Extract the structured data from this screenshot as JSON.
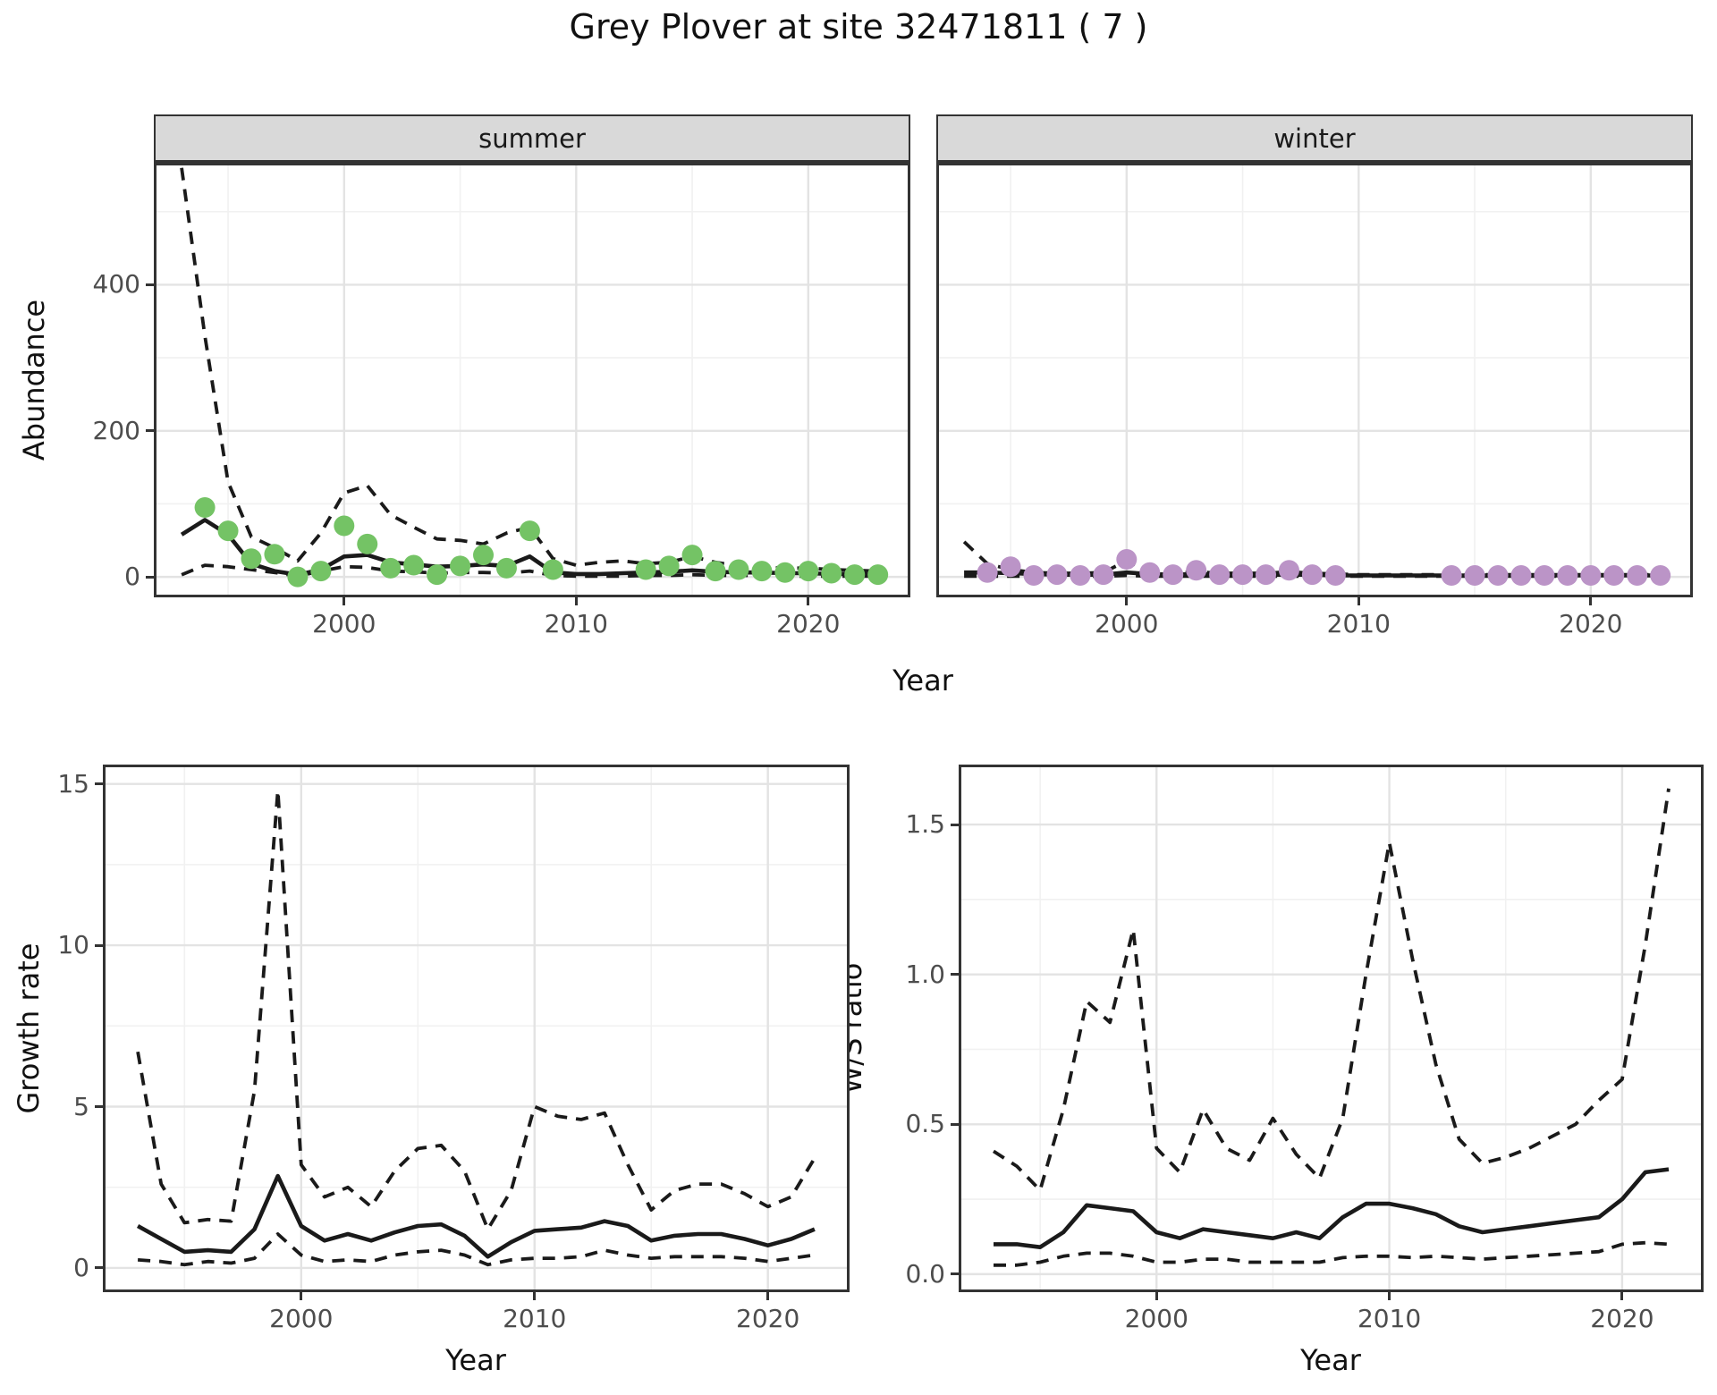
{
  "title": "Grey Plover at site 32471811 ( 7 )",
  "labels": {
    "abundance": "Abundance",
    "year": "Year",
    "growth_rate": "Growth rate",
    "ws_ratio": "W/S ratio"
  },
  "colors": {
    "summer_point": "#74C365",
    "winter_point": "#BB94C7",
    "line": "#1A1A1A",
    "strip_bg": "#D9D9D9",
    "panel_border": "#333333",
    "grid_major": "#E3E3E3",
    "grid_minor": "#F1F1F1",
    "tick_text": "#4D4D4D"
  },
  "chart_data": [
    {
      "name": "abundance-summer",
      "type": "line+scatter",
      "facet_label": "summer",
      "xlabel": "Year",
      "ylabel": "Abundance",
      "legend": "none",
      "grid": true,
      "point_color": "#74C365",
      "xlim": [
        1991.8,
        2024.4
      ],
      "ylim": [
        -28,
        567
      ],
      "xticks": [
        2000,
        2010,
        2020
      ],
      "xtick_labels": [
        "2000",
        "2010",
        "2020"
      ],
      "x_minor": [
        1995,
        2005,
        2015
      ],
      "yticks": [
        0,
        200,
        400
      ],
      "ytick_labels": [
        "0",
        "200",
        "400"
      ],
      "y_minor": [
        100,
        300,
        500
      ],
      "years": [
        1993,
        1994,
        1995,
        1996,
        1997,
        1998,
        1999,
        2000,
        2001,
        2002,
        2003,
        2004,
        2005,
        2006,
        2007,
        2008,
        2009,
        2010,
        2011,
        2012,
        2013,
        2014,
        2015,
        2016,
        2017,
        2018,
        2019,
        2020,
        2021,
        2022,
        2023
      ],
      "series": [
        {
          "name": "upper-95ci",
          "style": "dashed",
          "y": [
            560,
            330,
            130,
            55,
            40,
            22,
            60,
            115,
            125,
            85,
            68,
            52,
            50,
            45,
            60,
            68,
            25,
            16,
            20,
            22,
            18,
            20,
            28,
            20,
            15,
            13,
            12,
            12,
            10,
            9,
            8
          ]
        },
        {
          "name": "lower-95ci",
          "style": "dashed",
          "y": [
            3,
            16,
            14,
            10,
            6,
            1,
            8,
            14,
            13,
            8,
            7,
            5,
            6,
            6,
            5,
            8,
            2,
            1,
            1,
            1,
            2,
            2,
            3,
            2,
            2,
            2,
            1,
            1,
            1,
            1,
            1
          ]
        },
        {
          "name": "fitted",
          "style": "solid",
          "y": [
            58,
            78,
            58,
            18,
            8,
            3,
            10,
            28,
            30,
            20,
            17,
            14,
            15,
            17,
            15,
            28,
            6,
            4,
            4,
            5,
            6,
            7,
            9,
            7,
            6,
            6,
            5,
            5,
            4,
            4,
            3
          ]
        },
        {
          "name": "observed",
          "style": "points",
          "x": [
            1994,
            1995,
            1996,
            1997,
            1998,
            1999,
            2000,
            2001,
            2002,
            2003,
            2004,
            2005,
            2006,
            2007,
            2008,
            2009,
            2013,
            2014,
            2015,
            2016,
            2017,
            2018,
            2019,
            2020,
            2021,
            2022,
            2023
          ],
          "y": [
            95,
            63,
            25,
            31,
            0,
            8,
            70,
            45,
            12,
            16,
            3,
            15,
            30,
            12,
            63,
            10,
            10,
            15,
            30,
            8,
            10,
            8,
            6,
            8,
            5,
            3,
            3
          ]
        }
      ]
    },
    {
      "name": "abundance-winter",
      "type": "line+scatter",
      "facet_label": "winter",
      "xlabel": "Year",
      "ylabel": "Abundance",
      "legend": "none",
      "grid": true,
      "point_color": "#BB94C7",
      "xlim": [
        1991.8,
        2024.4
      ],
      "ylim": [
        -28,
        567
      ],
      "xticks": [
        2000,
        2010,
        2020
      ],
      "xtick_labels": [
        "2000",
        "2010",
        "2020"
      ],
      "x_minor": [
        1995,
        2005,
        2015
      ],
      "yticks": [
        0,
        200,
        400
      ],
      "ytick_labels": [
        "0",
        "200",
        "400"
      ],
      "y_minor": [
        100,
        300,
        500
      ],
      "years": [
        1993,
        1994,
        1995,
        1996,
        1997,
        1998,
        1999,
        2000,
        2001,
        2002,
        2003,
        2004,
        2005,
        2006,
        2007,
        2008,
        2009,
        2010,
        2011,
        2012,
        2013,
        2014,
        2015,
        2016,
        2017,
        2018,
        2019,
        2020,
        2021,
        2022,
        2023
      ],
      "series": [
        {
          "name": "upper-95ci",
          "style": "dashed",
          "y": [
            48,
            18,
            10,
            6,
            5,
            5,
            6,
            22,
            8,
            5,
            7,
            5,
            5,
            5,
            7,
            5,
            4,
            3,
            3,
            3,
            3,
            3,
            3,
            3,
            3,
            3,
            3,
            3,
            3,
            3,
            3
          ]
        },
        {
          "name": "lower-95ci",
          "style": "dashed",
          "y": [
            1,
            1,
            1,
            1,
            1,
            1,
            1,
            2,
            1,
            1,
            1,
            1,
            1,
            1,
            1,
            1,
            1,
            1,
            1,
            1,
            1,
            1,
            1,
            1,
            1,
            1,
            1,
            1,
            1,
            1,
            1
          ]
        },
        {
          "name": "fitted",
          "style": "solid",
          "y": [
            6,
            6,
            5,
            4,
            3,
            3,
            3,
            6,
            4,
            3,
            4,
            3,
            3,
            3,
            3,
            3,
            2,
            2,
            2,
            2,
            2,
            2,
            2,
            2,
            2,
            2,
            2,
            2,
            2,
            2,
            2
          ]
        },
        {
          "name": "observed",
          "style": "points",
          "x": [
            1994,
            1995,
            1996,
            1997,
            1998,
            1999,
            2000,
            2001,
            2002,
            2003,
            2004,
            2005,
            2006,
            2007,
            2008,
            2009,
            2014,
            2015,
            2016,
            2017,
            2018,
            2019,
            2020,
            2021,
            2022,
            2023
          ],
          "y": [
            6,
            14,
            2,
            3,
            2,
            3,
            24,
            6,
            3,
            9,
            3,
            3,
            3,
            9,
            3,
            2,
            2,
            2,
            2,
            2,
            2,
            2,
            2,
            2,
            2,
            2
          ]
        }
      ]
    },
    {
      "name": "growth-rate",
      "type": "line",
      "xlabel": "Year",
      "ylabel": "Growth rate",
      "legend": "none",
      "grid": true,
      "xlim": [
        1991.5,
        2023.5
      ],
      "ylim": [
        -0.75,
        15.6
      ],
      "xticks": [
        2000,
        2010,
        2020
      ],
      "xtick_labels": [
        "2000",
        "2010",
        "2020"
      ],
      "x_minor": [
        1995,
        2005,
        2015
      ],
      "yticks": [
        0,
        5,
        10,
        15
      ],
      "ytick_labels": [
        "0",
        "5",
        "10",
        "15"
      ],
      "y_minor": [
        2.5,
        7.5,
        12.5
      ],
      "years": [
        1993,
        1994,
        1995,
        1996,
        1997,
        1998,
        1999,
        2000,
        2001,
        2002,
        2003,
        2004,
        2005,
        2006,
        2007,
        2008,
        2009,
        2010,
        2011,
        2012,
        2013,
        2014,
        2015,
        2016,
        2017,
        2018,
        2019,
        2020,
        2021,
        2022
      ],
      "series": [
        {
          "name": "upper-95ci",
          "style": "dashed",
          "y": [
            6.7,
            2.6,
            1.4,
            1.5,
            1.45,
            5.5,
            14.8,
            3.2,
            2.2,
            2.5,
            1.9,
            3.0,
            3.7,
            3.8,
            3.0,
            1.2,
            2.4,
            5.0,
            4.7,
            4.6,
            4.8,
            3.2,
            1.8,
            2.4,
            2.6,
            2.6,
            2.3,
            1.9,
            2.2,
            3.4
          ]
        },
        {
          "name": "lower-95ci",
          "style": "dashed",
          "y": [
            0.25,
            0.2,
            0.1,
            0.2,
            0.15,
            0.3,
            1.05,
            0.4,
            0.2,
            0.25,
            0.2,
            0.4,
            0.5,
            0.55,
            0.4,
            0.1,
            0.25,
            0.3,
            0.3,
            0.35,
            0.55,
            0.4,
            0.3,
            0.35,
            0.35,
            0.35,
            0.3,
            0.2,
            0.3,
            0.4
          ]
        },
        {
          "name": "fitted",
          "style": "solid",
          "y": [
            1.3,
            0.9,
            0.5,
            0.55,
            0.5,
            1.2,
            2.85,
            1.3,
            0.85,
            1.05,
            0.85,
            1.1,
            1.3,
            1.35,
            1.0,
            0.35,
            0.8,
            1.15,
            1.2,
            1.25,
            1.45,
            1.3,
            0.85,
            1.0,
            1.05,
            1.05,
            0.9,
            0.7,
            0.9,
            1.2
          ]
        }
      ]
    },
    {
      "name": "ws-ratio",
      "type": "line",
      "xlabel": "Year",
      "ylabel": "W/S ratio",
      "legend": "none",
      "grid": true,
      "xlim": [
        1991.5,
        2023.5
      ],
      "ylim": [
        -0.06,
        1.7
      ],
      "xticks": [
        2000,
        2010,
        2020
      ],
      "xtick_labels": [
        "2000",
        "2010",
        "2020"
      ],
      "x_minor": [
        1995,
        2005,
        2015
      ],
      "yticks": [
        0,
        0.5,
        1.0,
        1.5
      ],
      "ytick_labels": [
        "0.0",
        "0.5",
        "1.0",
        "1.5"
      ],
      "y_minor": [
        0.25,
        0.75,
        1.25
      ],
      "years": [
        1993,
        1994,
        1995,
        1996,
        1997,
        1998,
        1999,
        2000,
        2001,
        2002,
        2003,
        2004,
        2005,
        2006,
        2007,
        2008,
        2009,
        2010,
        2011,
        2012,
        2013,
        2014,
        2015,
        2016,
        2017,
        2018,
        2019,
        2020,
        2021,
        2022
      ],
      "series": [
        {
          "name": "upper-95ci",
          "style": "dashed",
          "y": [
            0.41,
            0.36,
            0.28,
            0.55,
            0.91,
            0.84,
            1.15,
            0.42,
            0.34,
            0.55,
            0.42,
            0.38,
            0.52,
            0.4,
            0.32,
            0.52,
            1.0,
            1.44,
            1.05,
            0.7,
            0.45,
            0.37,
            0.39,
            0.42,
            0.46,
            0.5,
            0.58,
            0.65,
            1.1,
            1.62
          ]
        },
        {
          "name": "lower-95ci",
          "style": "dashed",
          "y": [
            0.03,
            0.03,
            0.04,
            0.06,
            0.07,
            0.07,
            0.06,
            0.04,
            0.04,
            0.05,
            0.05,
            0.04,
            0.04,
            0.04,
            0.04,
            0.055,
            0.06,
            0.06,
            0.055,
            0.06,
            0.055,
            0.05,
            0.055,
            0.06,
            0.065,
            0.07,
            0.075,
            0.1,
            0.105,
            0.1
          ]
        },
        {
          "name": "fitted",
          "style": "solid",
          "y": [
            0.1,
            0.1,
            0.09,
            0.14,
            0.23,
            0.22,
            0.21,
            0.14,
            0.12,
            0.15,
            0.14,
            0.13,
            0.12,
            0.14,
            0.12,
            0.19,
            0.235,
            0.235,
            0.22,
            0.2,
            0.16,
            0.14,
            0.15,
            0.16,
            0.17,
            0.18,
            0.19,
            0.25,
            0.34,
            0.35
          ]
        }
      ]
    }
  ]
}
